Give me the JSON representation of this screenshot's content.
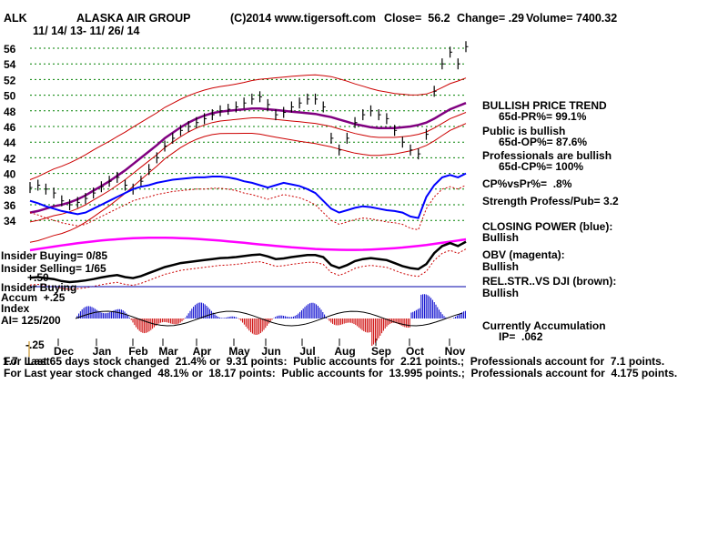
{
  "header": {
    "ticker": "ALK",
    "company": "ALASKA AIR GROUP",
    "copyright": "(C)2014 www.tigersoft.com",
    "close": "Close=  56.2",
    "change": "Change= .29",
    "volume": "Volume= 7400.32",
    "date_range": "11/ 14/ 13- 11/ 26/ 14"
  },
  "colors": {
    "price": "#000000",
    "bands": "#cc0000",
    "ma": "#800080",
    "closing_power": "#0000ff",
    "obv": "#ff00ff",
    "rel_str": "#000000",
    "accum_pos": "#0000cc",
    "accum_neg": "#cc0000",
    "grid": "#008000"
  },
  "left_labels": {
    "insider_buying": "Insider Buying= 0/85",
    "insider_selling": "Insider Selling= 1/65",
    "plus50": "+.50",
    "insider_buying2": "Insider Buying",
    "accum": "Accum  +.25",
    "index": "Index",
    "ai": "AI= 125/200",
    "minus25": "-.25",
    "overlap_a": "1.7",
    "overlap_b": "Last"
  },
  "right_panel": {
    "trend_title": "BULLISH PRICE TREND",
    "pr": "65d-PR%= 99.1%",
    "public_bullish": "Public is bullish",
    "op": "65d-OP%= 87.6%",
    "prof_bullish": "Professionals are bullish",
    "cp": "65d-CP%= 100%",
    "cpvspr": "CP%vsPr%=  .8%",
    "strength": "Strength Profess/Pub= 3.2",
    "cp_title": "CLOSING POWER (blue):",
    "cp_status": "Bullish",
    "obv_title": "OBV (magenta):",
    "obv_status": "Bullish",
    "rel_title": "REL.STR..VS DJI (brown):",
    "rel_status": "Bullish",
    "accum_title": "Currently Accumulation",
    "ip": "IP=  .062"
  },
  "footer": {
    "line1": "For Last 65 days stock changed  21.4% or  9.31 points:  Public accounts for  2.21 points.;  Professionals account for  7.1 points.",
    "line2": "For Last year stock changed  48.1% or  18.17 points:  Public accounts for  13.995 points.;  Professionals account for  4.175 points."
  },
  "chart_data": {
    "type": "line",
    "title": "ALASKA AIR GROUP",
    "y_ticks": [
      56,
      54,
      52,
      50,
      48,
      46,
      44,
      42,
      40,
      38,
      36,
      34
    ],
    "ylim": [
      33,
      57
    ],
    "x_ticks": [
      "Dec",
      "Jan",
      "Feb",
      "Mar",
      "Apr",
      "May",
      "Jun",
      "Jul",
      "Aug",
      "Sep",
      "Oct",
      "Nov"
    ],
    "grid": true,
    "series": [
      {
        "name": "price",
        "values": [
          38.2,
          38.5,
          38.0,
          37.5,
          36.5,
          36.0,
          36.3,
          36.8,
          37.5,
          38.3,
          39.0,
          39.5,
          38.5,
          38.0,
          39.0,
          40.5,
          42.0,
          43.5,
          44.5,
          45.5,
          46.0,
          46.5,
          47.0,
          47.5,
          48.0,
          48.2,
          48.5,
          49.0,
          49.5,
          49.8,
          48.8,
          47.5,
          47.8,
          48.5,
          49.0,
          49.5,
          49.5,
          48.5,
          44.5,
          43.0,
          44.5,
          46.5,
          47.5,
          48.0,
          47.5,
          47.0,
          45.5,
          44.0,
          43.0,
          42.5,
          45.0,
          50.5,
          54.0,
          55.5,
          54.0,
          56.2
        ]
      },
      {
        "name": "ma",
        "values": [
          35.0,
          35.2,
          35.5,
          35.8,
          36.0,
          36.3,
          36.7,
          37.2,
          37.8,
          38.4,
          39.0,
          39.7,
          40.4,
          41.2,
          42.0,
          42.8,
          43.6,
          44.5,
          45.2,
          45.9,
          46.5,
          47.0,
          47.4,
          47.7,
          47.9,
          48.0,
          48.1,
          48.2,
          48.3,
          48.3,
          48.2,
          48.1,
          48.0,
          47.9,
          47.8,
          47.7,
          47.6,
          47.4,
          47.2,
          46.9,
          46.6,
          46.3,
          46.1,
          45.9,
          45.8,
          45.8,
          45.8,
          45.9,
          46.0,
          46.2,
          46.5,
          47.0,
          47.6,
          48.2,
          48.6,
          49.0
        ]
      },
      {
        "name": "closing_power",
        "values": [
          36.5,
          36.2,
          35.8,
          35.5,
          35.2,
          35.0,
          34.8,
          35.0,
          35.5,
          36.0,
          36.5,
          37.0,
          37.5,
          38.0,
          38.3,
          38.5,
          38.8,
          39.0,
          39.2,
          39.3,
          39.4,
          39.5,
          39.5,
          39.6,
          39.6,
          39.5,
          39.3,
          39.0,
          38.8,
          38.5,
          38.2,
          38.5,
          38.8,
          38.6,
          38.4,
          38.0,
          37.5,
          36.5,
          35.5,
          35.0,
          35.3,
          35.6,
          35.8,
          35.7,
          35.5,
          35.3,
          35.2,
          35.0,
          34.5,
          34.3,
          37.0,
          38.5,
          39.5,
          39.8,
          39.5,
          40.0
        ]
      }
    ]
  }
}
